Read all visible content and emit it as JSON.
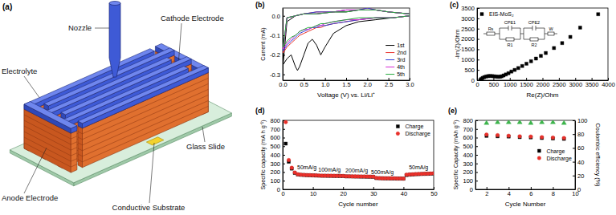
{
  "diagram": {
    "title": "(a)",
    "labels": {
      "nozzle": "Nozzle",
      "electrolyte": "Electrolyte",
      "cathode": "Cathode Electrode",
      "glass": "Glass Slide",
      "anode": "Anode Electrode",
      "substrate": "Conductive Substrate"
    }
  },
  "chart_data": [
    {
      "type": "line",
      "title": "(b)",
      "x_label": "Voltage (V) vs. Li/Li⁺",
      "y_label": "Current (mA)",
      "x": [
        3.0,
        2.6,
        2.2,
        1.8,
        1.5,
        1.2,
        1.0,
        0.9,
        0.8,
        0.7,
        0.6,
        0.5,
        0.4,
        0.35,
        0.3,
        0.2,
        0.1,
        0.01,
        0.1,
        0.3,
        0.5,
        0.8,
        1.2,
        1.5,
        1.8,
        2.0,
        2.2,
        2.5,
        3.0
      ],
      "series": [
        {
          "name": "1st",
          "color": "#000000",
          "values": [
            0.0,
            -0.01,
            -0.02,
            -0.03,
            -0.05,
            -0.09,
            -0.16,
            -0.2,
            -0.15,
            -0.12,
            -0.14,
            -0.2,
            -0.26,
            -0.28,
            -0.26,
            -0.2,
            -0.22,
            -0.25,
            -0.03,
            0.0,
            0.01,
            0.01,
            0.02,
            0.02,
            0.03,
            0.03,
            0.03,
            0.02,
            0.01
          ]
        },
        {
          "name": "2nd",
          "color": "#e8302a",
          "values": [
            0.0,
            -0.01,
            -0.01,
            -0.02,
            -0.03,
            -0.04,
            -0.05,
            -0.06,
            -0.06,
            -0.07,
            -0.08,
            -0.09,
            -0.1,
            -0.11,
            -0.12,
            -0.14,
            -0.16,
            -0.19,
            -0.01,
            0.0,
            0.01,
            0.02,
            0.02,
            0.03,
            0.03,
            0.04,
            0.03,
            0.02,
            0.01
          ]
        },
        {
          "name": "3rd",
          "color": "#2f3fd8",
          "values": [
            0.0,
            -0.01,
            -0.01,
            -0.02,
            -0.03,
            -0.04,
            -0.05,
            -0.05,
            -0.06,
            -0.06,
            -0.07,
            -0.08,
            -0.09,
            -0.1,
            -0.11,
            -0.13,
            -0.15,
            -0.18,
            -0.01,
            0.0,
            0.01,
            0.02,
            0.02,
            0.03,
            0.03,
            0.04,
            0.03,
            0.02,
            0.01
          ]
        },
        {
          "name": "4th",
          "color": "#d62ad6",
          "values": [
            0.0,
            -0.01,
            -0.01,
            -0.02,
            -0.02,
            -0.03,
            -0.04,
            -0.05,
            -0.05,
            -0.06,
            -0.07,
            -0.07,
            -0.08,
            -0.09,
            -0.1,
            -0.12,
            -0.14,
            -0.17,
            -0.01,
            0.0,
            0.01,
            0.01,
            0.02,
            0.03,
            0.03,
            0.03,
            0.03,
            0.02,
            0.01
          ]
        },
        {
          "name": "5th",
          "color": "#22a83a",
          "values": [
            0.0,
            -0.01,
            -0.01,
            -0.01,
            -0.02,
            -0.03,
            -0.04,
            -0.04,
            -0.05,
            -0.06,
            -0.06,
            -0.07,
            -0.08,
            -0.09,
            -0.1,
            -0.11,
            -0.13,
            -0.16,
            -0.01,
            0.0,
            0.01,
            0.01,
            0.02,
            0.02,
            0.03,
            0.03,
            0.03,
            0.02,
            0.01
          ]
        }
      ],
      "line_style": "solid",
      "xlim": [
        0,
        3
      ],
      "xticks": [
        {
          "value": 0,
          "label": "0.0"
        },
        0.5,
        {
          "value": 1,
          "label": "1.0"
        },
        1.5,
        {
          "value": 2,
          "label": "2.0"
        },
        2.5,
        {
          "value": 3,
          "label": "3.0"
        }
      ],
      "ylim": [
        -0.33,
        0.04
      ],
      "yticks": [
        -0.3,
        -0.2,
        -0.1,
        {
          "value": 0,
          "label": "0.0"
        }
      ],
      "legend": "lower right"
    },
    {
      "type": "scatter",
      "title": "(c)",
      "x_label": "Re(Z)/Ohm",
      "y_label": "-Im(Z)/Ohm",
      "x": [
        100,
        130,
        170,
        220,
        280,
        340,
        400,
        460,
        520,
        580,
        640,
        700,
        750,
        810,
        880,
        960,
        1050,
        1150,
        1260,
        1380,
        1510,
        1650,
        1800,
        1950,
        2100,
        2350,
        2600,
        2850,
        3150,
        3700
      ],
      "series": [
        {
          "name": "EIS-MoS₂",
          "color": "#000000",
          "marker": "square",
          "values": [
            10,
            60,
            110,
            150,
            180,
            200,
            205,
            200,
            190,
            178,
            168,
            170,
            190,
            230,
            280,
            340,
            420,
            500,
            590,
            690,
            800,
            920,
            1050,
            1180,
            1320,
            1560,
            1800,
            2100,
            2550,
            3200
          ]
        }
      ],
      "circuit_labels": [
        "Rs",
        "CPE1",
        "R1",
        "CPE2",
        "R2",
        "W"
      ],
      "xlim": [
        0,
        4000
      ],
      "xticks": [
        0,
        500,
        1000,
        1500,
        2000,
        2500,
        3000,
        3500,
        4000
      ],
      "ylim": [
        0,
        3500
      ],
      "yticks": [
        0,
        500,
        1000,
        1500,
        2000,
        2500,
        3000,
        3500
      ],
      "legend": "upper left"
    },
    {
      "type": "scatter",
      "title": "(d)",
      "x_label": "Cycle number",
      "y_label": "Specific capacity (mA h g⁻¹)",
      "x": [
        1,
        2,
        3,
        4,
        5,
        6,
        7,
        8,
        9,
        10,
        11,
        12,
        13,
        14,
        15,
        16,
        17,
        18,
        19,
        20,
        21,
        22,
        23,
        24,
        25,
        26,
        27,
        28,
        29,
        30,
        31,
        32,
        33,
        34,
        35,
        36,
        37,
        38,
        39,
        40,
        41,
        42,
        43,
        44,
        45,
        46,
        47,
        48,
        49,
        50
      ],
      "series": [
        {
          "name": "Charge",
          "color": "#000000",
          "marker": "square",
          "values": [
            530,
            320,
            240,
            190,
            172,
            168,
            166,
            164,
            163,
            162,
            160,
            158,
            157,
            157,
            156,
            156,
            155,
            155,
            154,
            154,
            150,
            150,
            149,
            148,
            148,
            147,
            147,
            146,
            146,
            145,
            130,
            129,
            128,
            127,
            127,
            126,
            126,
            125,
            125,
            124,
            165,
            170,
            172,
            175,
            176,
            178,
            179,
            180,
            181,
            183
          ]
        },
        {
          "name": "Discharge",
          "color": "#e8302a",
          "marker": "circle",
          "values": [
            780,
            340,
            250,
            195,
            175,
            170,
            168,
            166,
            165,
            163,
            162,
            160,
            159,
            158,
            158,
            157,
            157,
            156,
            156,
            155,
            152,
            151,
            150,
            150,
            149,
            149,
            148,
            148,
            147,
            147,
            132,
            130,
            129,
            128,
            128,
            127,
            127,
            126,
            126,
            125,
            170,
            173,
            175,
            177,
            178,
            180,
            181,
            182,
            183,
            185
          ]
        }
      ],
      "annotations": [
        {
          "text": "50mA/g",
          "x": 8,
          "y": 230
        },
        {
          "text": "100mA/g",
          "x": 15.5,
          "y": 205
        },
        {
          "text": "200mA/g",
          "x": 24.5,
          "y": 200
        },
        {
          "text": "500mA/g",
          "x": 33,
          "y": 175
        },
        {
          "text": "50mA/g",
          "x": 45,
          "y": 230
        }
      ],
      "xlim": [
        0,
        50
      ],
      "xticks": [
        0,
        10,
        20,
        30,
        40,
        50
      ],
      "ylim": [
        0,
        800
      ],
      "yticks": [
        0,
        100,
        200,
        300,
        400,
        500,
        600,
        700,
        800
      ],
      "legend": "upper right"
    },
    {
      "type": "scatter",
      "title": "(e)",
      "x_label": "Cycle Number",
      "y_label": "Specific Capacity (mAh g⁻¹)",
      "y2_label": "Coulombic efficiency (%)",
      "x": [
        2,
        3,
        4,
        5,
        6,
        7,
        8,
        9
      ],
      "series": [
        {
          "name": "Charge",
          "color": "#000000",
          "marker": "square",
          "values": [
            620,
            615,
            612,
            605,
            602,
            595,
            590,
            585
          ]
        },
        {
          "name": "Discharge",
          "color": "#e8302a",
          "marker": "circle",
          "values": [
            635,
            628,
            622,
            615,
            612,
            605,
            600,
            595
          ]
        },
        {
          "color": "#3cb44b",
          "marker": "triangle",
          "axis": "y2",
          "values": [
            96,
            97,
            97,
            97,
            96,
            97,
            97,
            96
          ]
        }
      ],
      "xlim": [
        1,
        10
      ],
      "xticks": [
        2,
        4,
        6,
        8,
        10
      ],
      "ylim": [
        0,
        800
      ],
      "yticks": [
        0,
        100,
        200,
        300,
        400,
        500,
        600,
        700,
        800
      ],
      "y2lim": [
        0,
        100
      ],
      "y2ticks": [
        0,
        20,
        40,
        60,
        80,
        100
      ],
      "legend": "center right"
    }
  ]
}
